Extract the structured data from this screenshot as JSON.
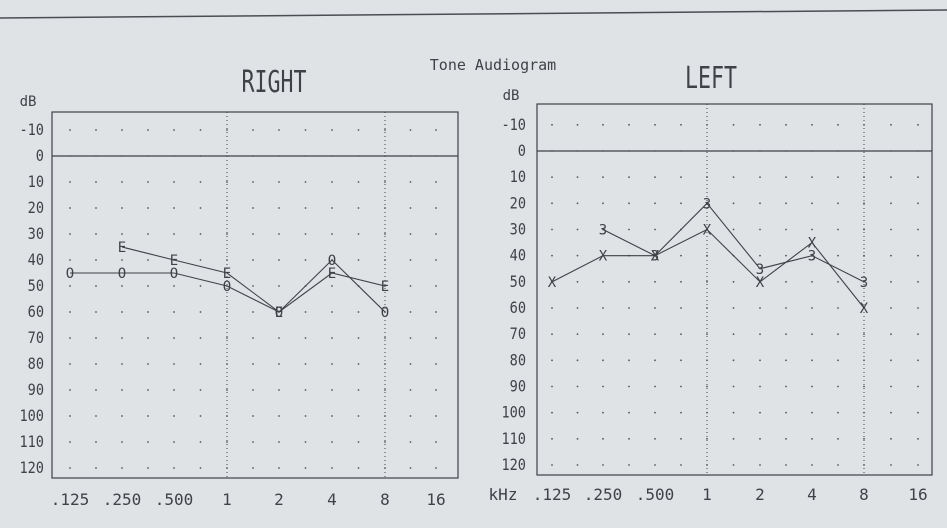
{
  "title": "Tone Audiogram",
  "frequency_unit": "kHz",
  "y_unit": "dB",
  "chart_data": [
    {
      "type": "line",
      "title": "RIGHT",
      "xlabel": "",
      "ylabel": "dB",
      "x_ticks": [
        ".125",
        ".250",
        ".500",
        "1",
        "2",
        "4",
        "8",
        "16"
      ],
      "y_ticks": [
        "-10",
        "0",
        "10",
        "20",
        "30",
        "40",
        "50",
        "60",
        "70",
        "80",
        "90",
        "100",
        "110",
        "120"
      ],
      "ylim": [
        -10,
        120
      ],
      "y_inverted": true,
      "grid": "dotted",
      "series": [
        {
          "marker": "O",
          "x": [
            ".125",
            ".250",
            ".500",
            "1",
            "2",
            "4",
            "8"
          ],
          "values": [
            45,
            45,
            45,
            50,
            60,
            40,
            60
          ]
        },
        {
          "marker": "E",
          "x": [
            ".250",
            ".500",
            "1",
            "2",
            "4",
            "8"
          ],
          "values": [
            35,
            40,
            45,
            60,
            45,
            50
          ]
        }
      ]
    },
    {
      "type": "line",
      "title": "LEFT",
      "xlabel": "kHz",
      "ylabel": "dB",
      "x_ticks": [
        ".125",
        ".250",
        ".500",
        "1",
        "2",
        "4",
        "8",
        "16"
      ],
      "y_ticks": [
        "-10",
        "0",
        "10",
        "20",
        "30",
        "40",
        "50",
        "60",
        "70",
        "80",
        "90",
        "100",
        "110",
        "120"
      ],
      "ylim": [
        -10,
        120
      ],
      "y_inverted": true,
      "grid": "dotted",
      "series": [
        {
          "marker": "X",
          "x": [
            ".125",
            ".250",
            ".500",
            "1",
            "2",
            "4",
            "8"
          ],
          "values": [
            50,
            40,
            40,
            30,
            50,
            35,
            60
          ]
        },
        {
          "marker": "3",
          "x": [
            ".250",
            ".500",
            "1",
            "2",
            "4",
            "8"
          ],
          "values": [
            30,
            40,
            20,
            45,
            40,
            50
          ]
        }
      ]
    }
  ]
}
